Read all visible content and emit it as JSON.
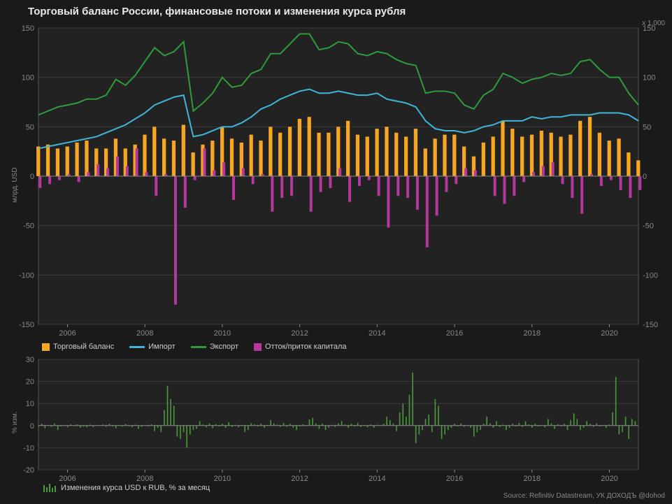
{
  "title": "Торговый баланс России, финансовые потоки и изменения курса рубля",
  "source": "Source: Refinitiv Datastream, УК ДОХОДЪ @dohod",
  "colors": {
    "bg": "#1a1a1a",
    "plot_bg": "#222222",
    "grid": "#3a3a3a",
    "border": "#555555",
    "text": "#cccccc",
    "axis": "#888888",
    "trade_balance": "#f7a623",
    "import": "#3fb6d8",
    "export": "#2e9b3c",
    "capital": "#b8379f",
    "usd_rub": "#4a9b3a"
  },
  "main": {
    "ylabel": "млрд. USD",
    "r2label": "x 1,000",
    "ylim": [
      -150,
      150
    ],
    "yticks": [
      -150,
      -100,
      -50,
      0,
      50,
      100,
      150
    ],
    "xlim": [
      2005.25,
      2020.75
    ],
    "xticks": [
      2006,
      2008,
      2010,
      2012,
      2014,
      2016,
      2018,
      2020
    ],
    "t0": 2005.25,
    "dt": 0.25,
    "trade_balance": [
      30,
      32,
      28,
      30,
      34,
      36,
      28,
      28,
      38,
      28,
      32,
      42,
      50,
      38,
      36,
      52,
      24,
      32,
      36,
      50,
      38,
      34,
      42,
      36,
      50,
      44,
      50,
      58,
      60,
      44,
      44,
      50,
      56,
      42,
      40,
      48,
      50,
      44,
      40,
      48,
      28,
      38,
      42,
      42,
      30,
      20,
      34,
      40,
      56,
      48,
      40,
      42,
      46,
      44,
      40,
      42,
      56,
      60,
      44,
      36,
      38,
      24,
      16
    ],
    "capital": [
      -12,
      -8,
      -4,
      2,
      -6,
      4,
      12,
      8,
      20,
      10,
      28,
      4,
      -20,
      2,
      -130,
      -32,
      -4,
      28,
      6,
      14,
      -24,
      8,
      -8,
      2,
      -36,
      -22,
      -20,
      0,
      -36,
      -16,
      -12,
      8,
      -26,
      -10,
      -4,
      -20,
      -52,
      -20,
      -22,
      -34,
      -72,
      -40,
      -16,
      -8,
      8,
      6,
      0,
      -20,
      -28,
      -20,
      -6,
      4,
      10,
      14,
      -8,
      -22,
      -38,
      2,
      -10,
      -4,
      -14,
      -22,
      -14
    ],
    "import": [
      28,
      30,
      32,
      34,
      36,
      38,
      40,
      44,
      48,
      52,
      58,
      64,
      72,
      76,
      80,
      82,
      40,
      42,
      46,
      50,
      50,
      54,
      60,
      68,
      72,
      78,
      82,
      86,
      88,
      84,
      84,
      86,
      84,
      82,
      82,
      84,
      78,
      76,
      74,
      70,
      56,
      48,
      46,
      46,
      44,
      46,
      50,
      52,
      56,
      56,
      56,
      60,
      58,
      60,
      60,
      62,
      62,
      62,
      64,
      64,
      64,
      62,
      56
    ],
    "export": [
      62,
      66,
      70,
      72,
      74,
      78,
      78,
      82,
      98,
      92,
      102,
      116,
      130,
      122,
      126,
      136,
      66,
      74,
      84,
      100,
      90,
      92,
      104,
      108,
      124,
      124,
      134,
      144,
      144,
      128,
      130,
      136,
      134,
      124,
      122,
      126,
      124,
      118,
      114,
      112,
      84,
      86,
      86,
      84,
      72,
      68,
      82,
      88,
      104,
      100,
      94,
      98,
      100,
      104,
      102,
      104,
      116,
      118,
      108,
      100,
      100,
      84,
      72
    ],
    "legend": [
      {
        "key": "trade_balance",
        "label": "Торговый баланс",
        "type": "bar"
      },
      {
        "key": "import",
        "label": "Импорт",
        "type": "line"
      },
      {
        "key": "export",
        "label": "Экспорт",
        "type": "line"
      },
      {
        "key": "capital",
        "label": "Отток/приток капитала",
        "type": "bar"
      }
    ]
  },
  "sub": {
    "ylabel": "% изм.",
    "ylim": [
      -20,
      30
    ],
    "yticks": [
      -20,
      -10,
      0,
      10,
      20,
      30
    ],
    "xlim": [
      2005.25,
      2020.75
    ],
    "xticks": [
      2006,
      2008,
      2010,
      2012,
      2014,
      2016,
      2018,
      2020
    ],
    "t0": 2005.25,
    "dt": 0.083333,
    "legend_label": "Изменения курса USD к RUB, % за месяц",
    "usd_rub": [
      -0.5,
      0.8,
      -1.2,
      0.3,
      -0.6,
      1.0,
      -2.0,
      -0.4,
      0.2,
      -0.8,
      0.5,
      -0.3,
      0.6,
      -1.0,
      -0.5,
      -0.8,
      0.4,
      -0.7,
      0.3,
      -0.2,
      0.5,
      -0.6,
      0.8,
      -0.4,
      -1.2,
      0.3,
      -0.5,
      0.7,
      -0.3,
      -0.8,
      0.4,
      -1.5,
      -0.6,
      0.2,
      -0.4,
      0.6,
      -2.5,
      -1.0,
      -3.0,
      7.0,
      18.0,
      12.0,
      9.0,
      -5.0,
      -6.0,
      -3.0,
      -10.0,
      -4.0,
      -2.0,
      -1.5,
      2.0,
      0.5,
      -0.8,
      1.0,
      -1.2,
      0.6,
      -0.4,
      0.8,
      -1.0,
      1.5,
      -0.6,
      0.4,
      -0.8,
      0.3,
      -3.0,
      -2.0,
      1.0,
      0.5,
      -0.4,
      0.8,
      -1.0,
      0.3,
      2.5,
      1.0,
      0.4,
      -0.6,
      1.2,
      -0.5,
      0.8,
      -1.0,
      -2.0,
      -0.4,
      0.6,
      -0.3,
      2.8,
      3.5,
      1.0,
      -1.5,
      0.8,
      -2.0,
      -1.0,
      0.4,
      -0.6,
      1.0,
      2.0,
      0.5,
      -1.0,
      0.8,
      -0.4,
      1.2,
      -0.6,
      0.3,
      -0.8,
      0.5,
      -1.0,
      0.4,
      -0.3,
      0.8,
      4.0,
      2.5,
      1.0,
      -2.5,
      6.0,
      10.0,
      4.0,
      14.0,
      24.0,
      -8.0,
      -4.0,
      -2.0,
      3.0,
      5.0,
      -3.0,
      12.0,
      9.0,
      -6.0,
      -4.0,
      -2.0,
      -1.0,
      0.8,
      -0.4,
      1.0,
      -0.6,
      0.3,
      -1.0,
      -5.0,
      -3.0,
      -2.0,
      0.8,
      4.0,
      1.0,
      -1.0,
      2.0,
      -0.6,
      0.4,
      -2.0,
      -1.0,
      0.8,
      -0.4,
      1.2,
      -0.6,
      2.0,
      0.5,
      -1.0,
      0.8,
      -0.4,
      0.3,
      -0.8,
      3.0,
      1.0,
      -1.5,
      0.6,
      -0.4,
      0.8,
      -2.0,
      2.5,
      5.5,
      3.0,
      -2.0,
      -1.0,
      2.0,
      0.8,
      -0.6,
      1.0,
      -0.4,
      0.3,
      -1.0,
      0.5,
      6.0,
      22.0,
      -4.0,
      -3.0,
      4.0,
      -6.0,
      3.0,
      2.0
    ]
  }
}
